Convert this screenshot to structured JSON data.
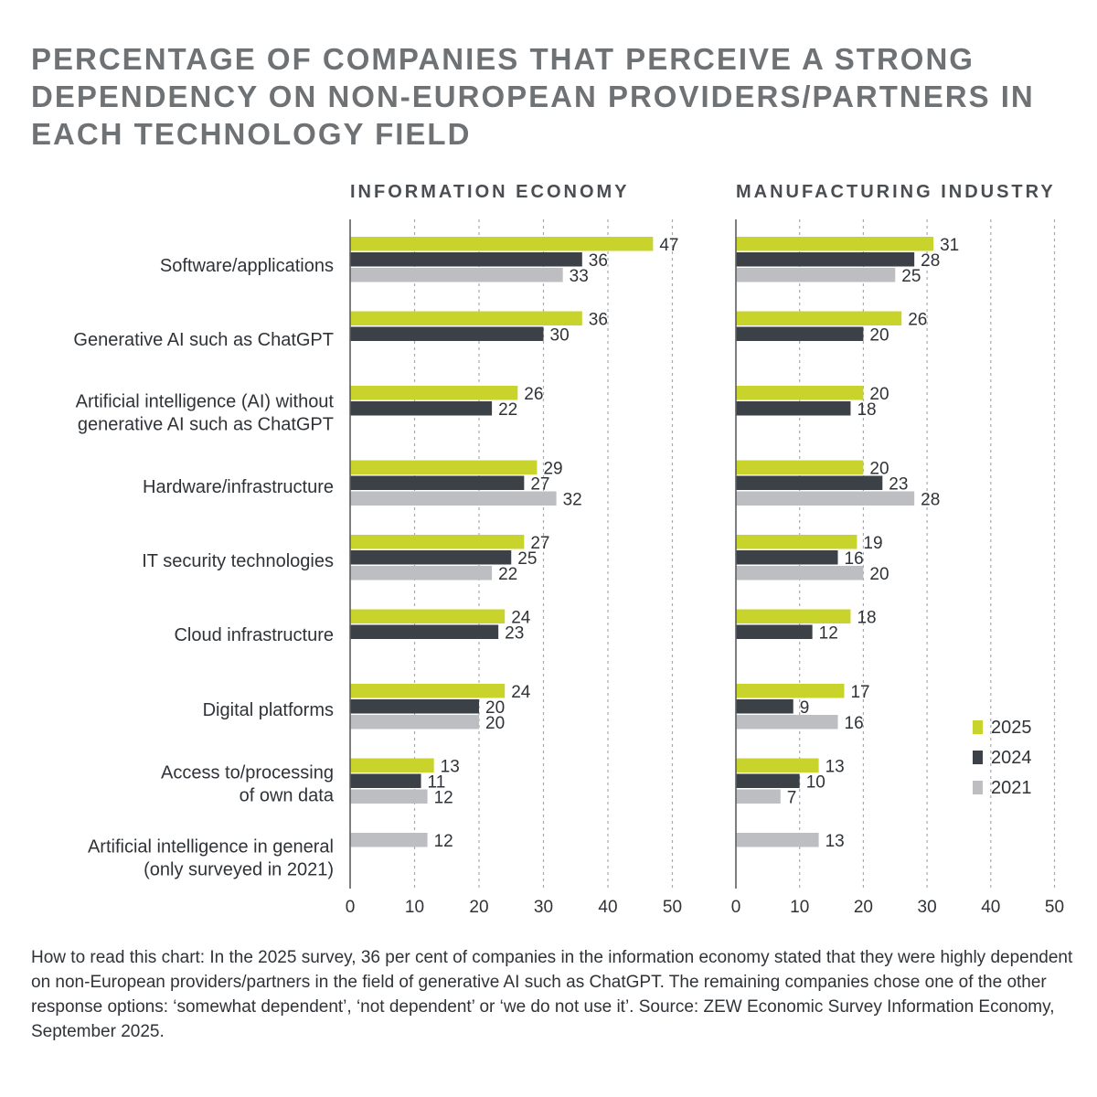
{
  "title": "PERCENTAGE OF COMPANIES THAT PERCEIVE A STRONG DEPENDENCY ON NON-EUROPEAN PROVIDERS/PARTNERS IN EACH TECHNOLOGY FIELD",
  "footnote": "How to read this chart: In the 2025 survey, 36 per cent of companies in the information economy stated that they were highly dependent on non-European providers/partners in the field of generative AI such as ChatGPT. The remaining companies chose one of the other response options: ‘somewhat dependent’, ‘not dependent’ or ‘we do not use it’. Source: ZEW Economic Survey Information Economy, September 2025.",
  "colors": {
    "2025": "#c8d42b",
    "2024": "#3b4147",
    "2021": "#bdbec2"
  },
  "chart_data": [
    {
      "type": "bar",
      "orientation": "horizontal",
      "title": "INFORMATION ECONOMY",
      "categories": [
        [
          "Software/applications"
        ],
        [
          "Generative AI such as ChatGPT"
        ],
        [
          "Artificial intelligence (AI) without",
          "generative AI such as ChatGPT"
        ],
        [
          "Hardware/infrastructure"
        ],
        [
          "IT security technologies"
        ],
        [
          "Cloud infrastructure"
        ],
        [
          "Digital platforms"
        ],
        [
          "Access to/processing",
          "of own data"
        ],
        [
          "Artificial intelligence in general",
          "(only surveyed in 2021)"
        ]
      ],
      "series": [
        {
          "name": "2025",
          "values": [
            47,
            36,
            26,
            29,
            27,
            24,
            24,
            13,
            null
          ]
        },
        {
          "name": "2024",
          "values": [
            36,
            30,
            22,
            27,
            25,
            23,
            20,
            11,
            null
          ]
        },
        {
          "name": "2021",
          "values": [
            33,
            null,
            null,
            32,
            22,
            null,
            20,
            12,
            12
          ]
        }
      ],
      "xlim": [
        0,
        50
      ],
      "xticks": [
        0,
        10,
        20,
        30,
        40,
        50
      ],
      "grid": true
    },
    {
      "type": "bar",
      "orientation": "horizontal",
      "title": "MANUFACTURING INDUSTRY",
      "series": [
        {
          "name": "2025",
          "values": [
            31,
            26,
            20,
            20,
            19,
            18,
            17,
            13,
            null
          ]
        },
        {
          "name": "2024",
          "values": [
            28,
            20,
            18,
            23,
            16,
            12,
            9,
            10,
            null
          ]
        },
        {
          "name": "2021",
          "values": [
            25,
            null,
            null,
            28,
            20,
            null,
            16,
            7,
            13
          ]
        }
      ],
      "xlim": [
        0,
        50
      ],
      "xticks": [
        0,
        10,
        20,
        30,
        40,
        50
      ],
      "grid": true
    }
  ],
  "legend": {
    "placement": "bottom-right",
    "entries": [
      "2025",
      "2024",
      "2021"
    ]
  }
}
